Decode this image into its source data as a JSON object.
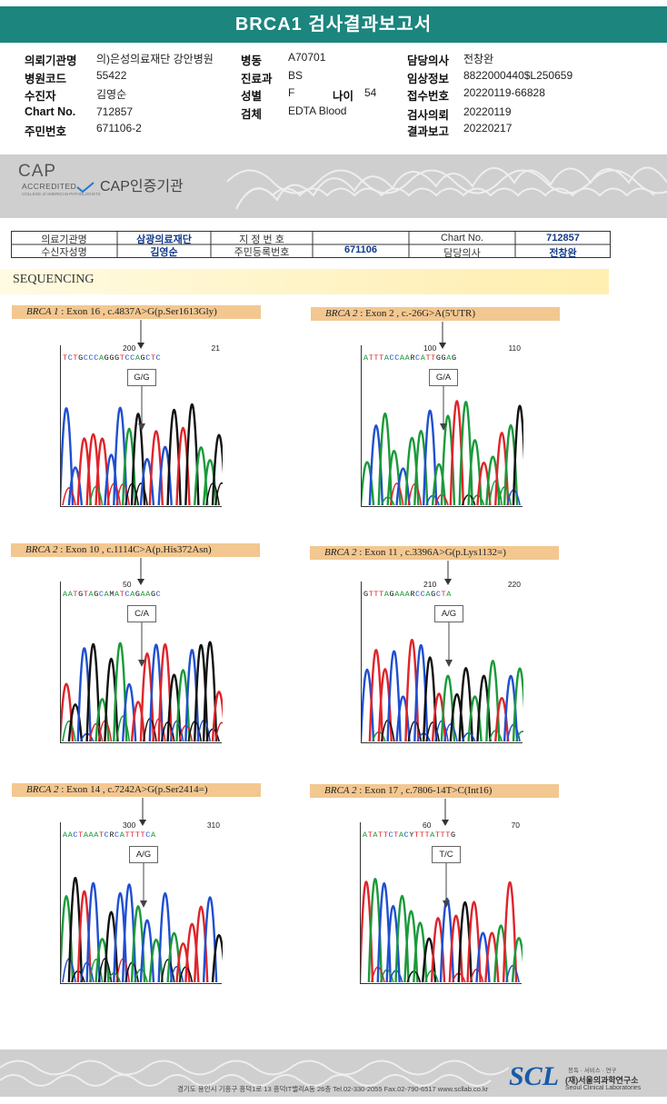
{
  "title": "BRCA1 검사결과보고서",
  "info": {
    "hospital": {
      "label": "의뢰기관명",
      "value": "의)은성의료재단 강안병원"
    },
    "hospital_code": {
      "label": "병원코드",
      "value": "55422"
    },
    "recipient": {
      "label": "수진자",
      "value": "김영순"
    },
    "chart_no": {
      "label": "Chart No.",
      "value": "712857"
    },
    "resident_no": {
      "label": "주민번호",
      "value": "671106-2"
    },
    "ward": {
      "label": "병동",
      "value": "A70701"
    },
    "dept": {
      "label": "진료과",
      "value": "BS"
    },
    "sex": {
      "label": "성별",
      "value": "F"
    },
    "age": {
      "label": "나이",
      "value": "54"
    },
    "specimen": {
      "label": "검체",
      "value": "EDTA Blood"
    },
    "doctor": {
      "label": "담당의사",
      "value": "전창완"
    },
    "clinical": {
      "label": "임상정보",
      "value": "8822000440$L250659"
    },
    "receipt": {
      "label": "접수번호",
      "value": "20220119-66828"
    },
    "request": {
      "label": "검사의뢰",
      "value": "20220119"
    },
    "report": {
      "label": "결과보고",
      "value": "20220217"
    }
  },
  "cap": {
    "logo": "CAP",
    "sub": "ACCREDITED",
    "tiny": "COLLEGE of AMERICAN PATHOLOGISTS",
    "text": "CAP인증기관"
  },
  "patient_table": {
    "inst_label": "의료기관명",
    "inst_value": "삼광의료재단",
    "designated_label": "지 정 번 호",
    "chart_label": "Chart No.",
    "chart_value": "712857",
    "name_label": "수신자성명",
    "name_value": "김영순",
    "reg_label": "주민등록번호",
    "reg_value": "671106",
    "doc_label": "담당의사",
    "doc_value": "전창완"
  },
  "section_title": "SEQUENCING",
  "variants": [
    {
      "gene": "BRCA 1",
      "desc": ": Exon 16 , c.4837A>G(p.Ser1613Gly)",
      "genotype": "G/G",
      "tick1": "200",
      "tick2": "21",
      "sequence": "TCTGCCCAGGGTCCAGCTC"
    },
    {
      "gene": "BRCA 2",
      "desc": ": Exon 2 , c.-26G>A(5'UTR)",
      "genotype": "G/A",
      "tick1": "100",
      "tick2": "110",
      "sequence": "ATTTACCAARCATTGGAG"
    },
    {
      "gene": "BRCA 2",
      "desc": ": Exon 10 , c.1114C>A(p.His372Asn)",
      "genotype": "C/A",
      "tick1": "50",
      "tick2": "",
      "sequence": "AATGTAGCAMATCAGAAGC"
    },
    {
      "gene": "BRCA 2",
      "desc": ": Exon 11 , c.3396A>G(p.Lys1132=)",
      "genotype": "A/G",
      "tick1": "210",
      "tick2": "220",
      "sequence": "GTTTAGAAARCCAGCTA"
    },
    {
      "gene": "BRCA 2",
      "desc": ": Exon 14 , c.7242A>G(p.Ser2414=)",
      "genotype": "A/G",
      "tick1": "300",
      "tick2": "310",
      "sequence": "AACTAAATCRCATTTTCA"
    },
    {
      "gene": "BRCA 2",
      "desc": ": Exon 17 , c.7806-14T>C(Int16)",
      "genotype": "T/C",
      "tick1": "60",
      "tick2": "70",
      "sequence": "ATATTCTACYTTTATTTG"
    }
  ],
  "base_colors": {
    "A": "#1a9a3a",
    "C": "#1f4fd0",
    "G": "#111111",
    "T": "#e0242a",
    "R": "#222222",
    "M": "#222222",
    "Y": "#222222"
  },
  "footer": {
    "address": "경기도 용인시 기흥구 흥덕1로 13 흥덕IT밸리A동 26층  Tel.02-330-2055  Fax.02-790-6517  www.scllab.co.kr",
    "logo": "SCL",
    "logo_top": "봉독 · 서비스 · 연구",
    "logo_kr": "(재)서울의과학연구소",
    "logo_en": "Seoul Clinical Laboratories"
  }
}
